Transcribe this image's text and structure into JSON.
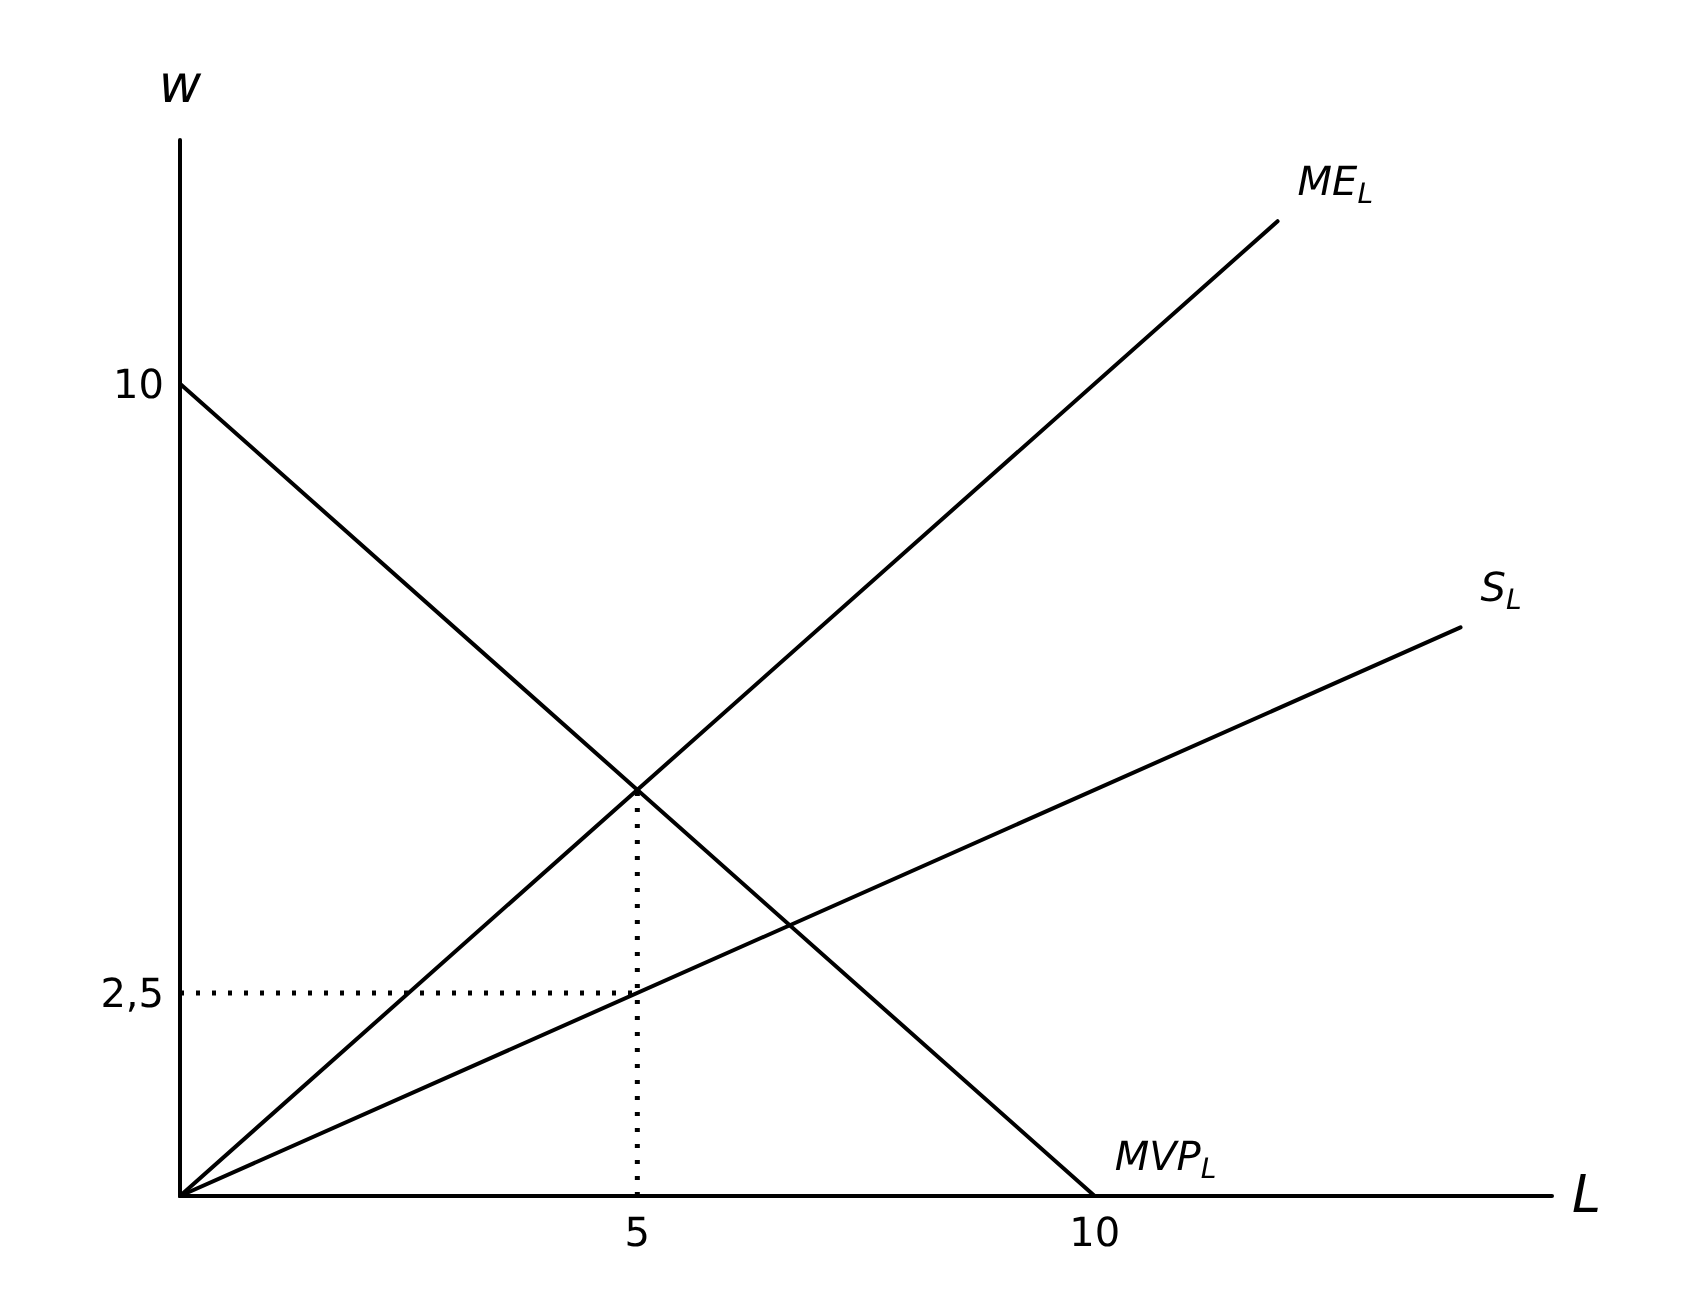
{
  "chart_data": {
    "type": "line",
    "xlabel": "L",
    "ylabel": "w",
    "xlim": [
      0,
      15
    ],
    "ylim": [
      0,
      13
    ],
    "xticks": [
      5,
      10
    ],
    "yticks": [
      {
        "value": 2.5,
        "label": "2,5"
      },
      10
    ],
    "grid": false,
    "legend": false,
    "marker": "none",
    "series": [
      {
        "name": "ME$_{L}$",
        "color": "#000000",
        "x": [
          0,
          12
        ],
        "values": [
          0,
          12
        ]
      },
      {
        "name": "S$_{L}$",
        "color": "#000000",
        "x": [
          0,
          14
        ],
        "values": [
          0,
          7
        ]
      },
      {
        "name": "MVP$_{L}$",
        "color": "#000000",
        "x": [
          0,
          10
        ],
        "values": [
          10,
          0
        ]
      },
      {
        "color": "#000000",
        "x": [
          5,
          5
        ],
        "values": [
          0,
          5
        ],
        "line_style": "dotted"
      },
      {
        "color": "#000000",
        "x": [
          0,
          5
        ],
        "values": [
          2.5,
          2.5
        ],
        "line_style": "dotted"
      }
    ]
  }
}
